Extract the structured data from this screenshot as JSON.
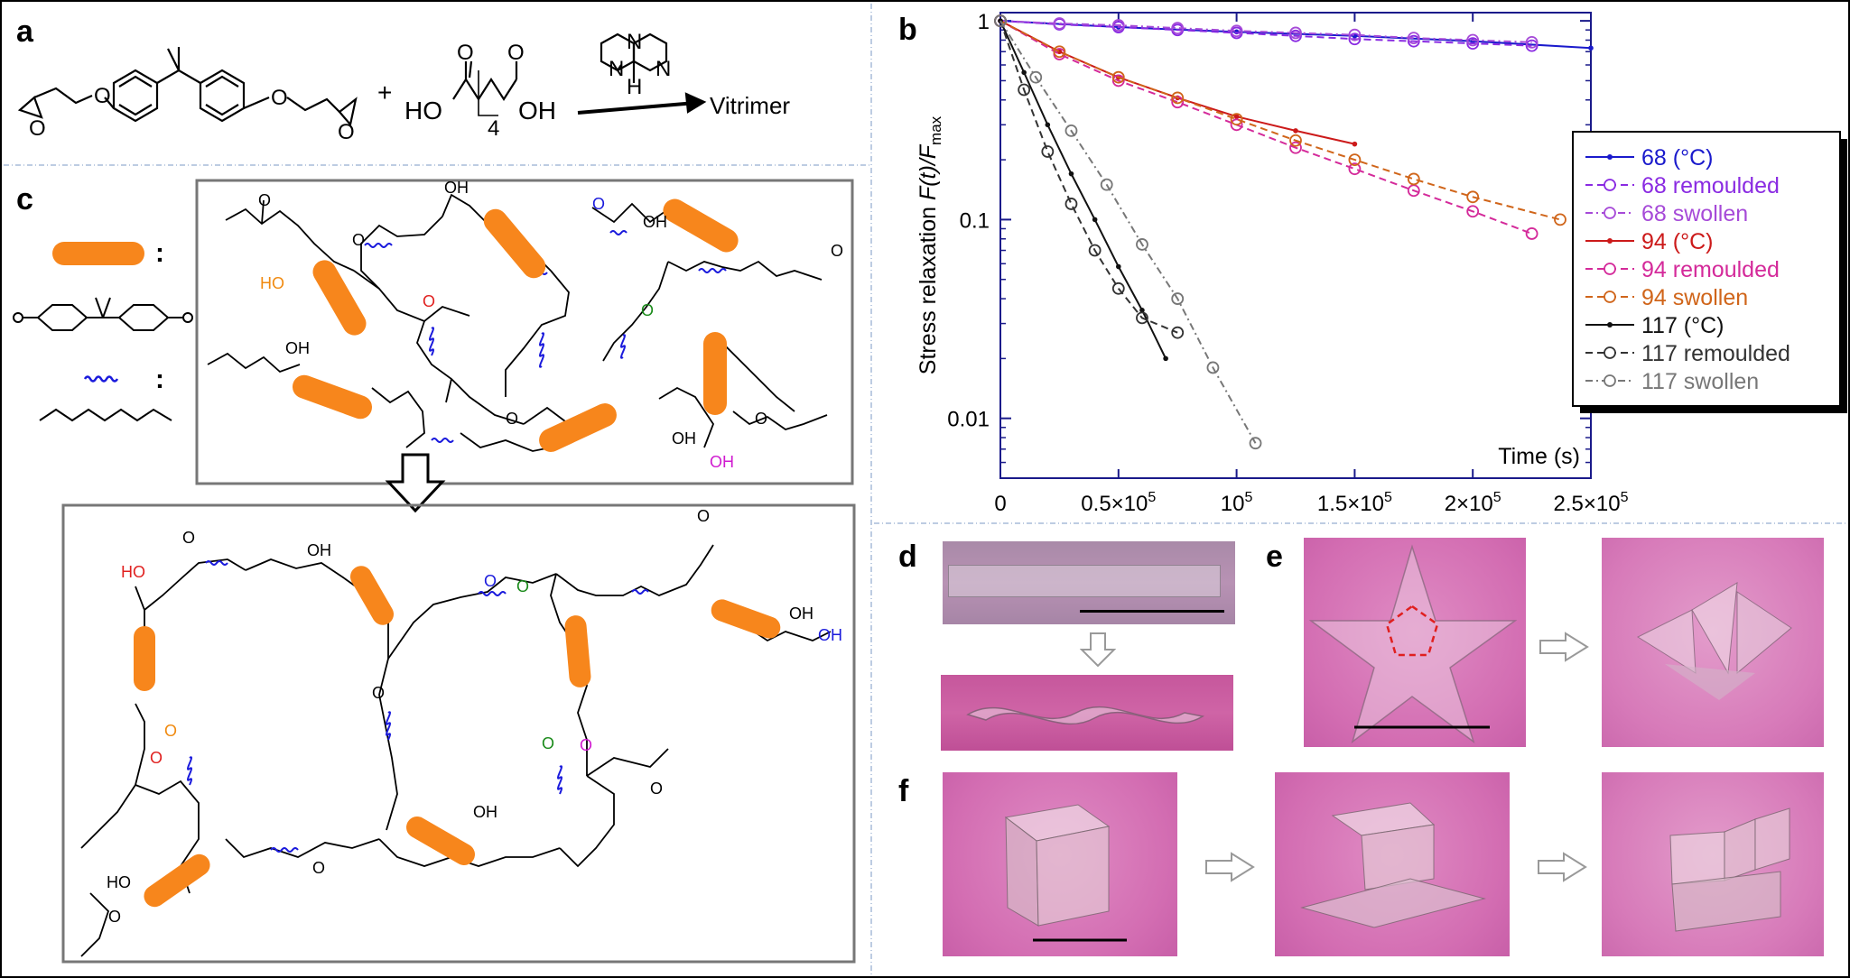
{
  "panels": {
    "a": {
      "label": "a",
      "plus": "+",
      "acid": {
        "ho": "HO",
        "oh": "OH",
        "sub": "4",
        "o": "O"
      },
      "epoxy_o": "O",
      "catalyst": {
        "n": "N",
        "h": "H"
      },
      "product": "Vitrimer"
    },
    "b": {
      "label": "b"
    },
    "c": {
      "label": "c",
      "legend_colon": ":",
      "groups": {
        "oh": "OH",
        "ho": "HO",
        "o": "O"
      }
    },
    "d": {
      "label": "d"
    },
    "e": {
      "label": "e"
    },
    "f": {
      "label": "f"
    }
  },
  "colors": {
    "bpa_block": "#f7861c",
    "adipic_chain": "#1a1adc",
    "highlight_red": "#e0201f",
    "highlight_green": "#1a8a1a",
    "highlight_magenta": "#d01ad0",
    "highlight_orange": "#f08a10",
    "photo_pink": "#d65aa8",
    "axis": "#1a1a8a"
  },
  "chart_data": {
    "type": "scatter",
    "yscale": "log",
    "ylabel": "Stress relaxation F(t)/F_max",
    "ylabel_parts": {
      "a": "Stress relaxation ",
      "f": "F",
      "t": "(t)/",
      "f2": "F",
      "sub": "max"
    },
    "xlabel": "Time (s)",
    "xlim": [
      0,
      250000
    ],
    "ylim": [
      0.005,
      1.1
    ],
    "xticks": [
      {
        "value": 0,
        "label": "0"
      },
      {
        "value": 50000,
        "label": "0.5×10",
        "sup": "5"
      },
      {
        "value": 100000,
        "label": "10",
        "sup": "5"
      },
      {
        "value": 150000,
        "label": "1.5×10",
        "sup": "5"
      },
      {
        "value": 200000,
        "label": "2×10",
        "sup": "5"
      },
      {
        "value": 250000,
        "label": "2.5×10",
        "sup": "5"
      }
    ],
    "yticks": [
      {
        "value": 1,
        "label": "1"
      },
      {
        "value": 0.1,
        "label": "0.1"
      },
      {
        "value": 0.01,
        "label": "0.01"
      }
    ],
    "legend_placement": "right",
    "series": [
      {
        "name": "68 (°C)",
        "color": "#1a1acc",
        "style": "line-dot",
        "x": [
          0,
          50000,
          100000,
          150000,
          200000,
          250000
        ],
        "y": [
          1,
          0.93,
          0.88,
          0.84,
          0.79,
          0.73
        ]
      },
      {
        "name": "68 remoulded",
        "color": "#8a2be2",
        "style": "open-dash",
        "x": [
          0,
          25000,
          50000,
          75000,
          100000,
          125000,
          150000,
          175000,
          200000,
          225000
        ],
        "y": [
          1,
          0.96,
          0.93,
          0.9,
          0.87,
          0.84,
          0.81,
          0.79,
          0.77,
          0.75
        ]
      },
      {
        "name": "68 swollen",
        "color": "#a64ad8",
        "style": "open-dashdot",
        "x": [
          0,
          25000,
          50000,
          75000,
          100000,
          125000,
          150000,
          175000,
          200000,
          225000
        ],
        "y": [
          1,
          0.97,
          0.95,
          0.92,
          0.89,
          0.87,
          0.85,
          0.82,
          0.8,
          0.78
        ]
      },
      {
        "name": "94 (°C)",
        "color": "#cc1a1a",
        "style": "line-dot",
        "x": [
          0,
          25000,
          50000,
          75000,
          100000,
          125000,
          150000
        ],
        "y": [
          1,
          0.7,
          0.52,
          0.41,
          0.33,
          0.28,
          0.24
        ]
      },
      {
        "name": "94 remoulded",
        "color": "#d42a9a",
        "style": "open-dash",
        "x": [
          0,
          25000,
          50000,
          75000,
          100000,
          125000,
          150000,
          175000,
          200000,
          225000
        ],
        "y": [
          1,
          0.68,
          0.5,
          0.39,
          0.3,
          0.23,
          0.18,
          0.14,
          0.11,
          0.085
        ]
      },
      {
        "name": "94 swollen",
        "color": "#d0651a",
        "style": "open-dash",
        "x": [
          0,
          25000,
          50000,
          75000,
          100000,
          125000,
          150000,
          175000,
          200000,
          237000
        ],
        "y": [
          1,
          0.7,
          0.52,
          0.41,
          0.32,
          0.25,
          0.2,
          0.16,
          0.13,
          0.1
        ]
      },
      {
        "name": "117 (°C)",
        "color": "#111111",
        "style": "line-dot",
        "x": [
          0,
          10000,
          20000,
          30000,
          40000,
          50000,
          60000,
          70000
        ],
        "y": [
          1,
          0.55,
          0.3,
          0.17,
          0.1,
          0.058,
          0.035,
          0.02
        ]
      },
      {
        "name": "117 remoulded",
        "color": "#333333",
        "style": "open-dash",
        "x": [
          0,
          10000,
          20000,
          30000,
          40000,
          50000,
          60000,
          75000
        ],
        "y": [
          1,
          0.45,
          0.22,
          0.12,
          0.07,
          0.045,
          0.032,
          0.027
        ]
      },
      {
        "name": "117 swollen",
        "color": "#777777",
        "style": "open-dashdot",
        "x": [
          0,
          15000,
          30000,
          45000,
          60000,
          75000,
          90000,
          108000
        ],
        "y": [
          1,
          0.52,
          0.28,
          0.15,
          0.075,
          0.04,
          0.018,
          0.0075
        ]
      }
    ]
  }
}
